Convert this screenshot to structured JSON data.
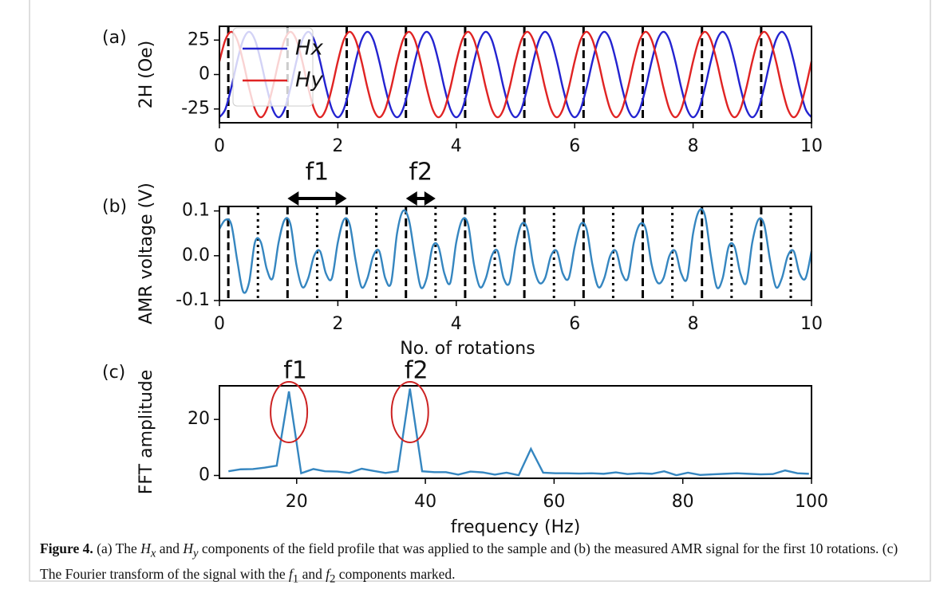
{
  "chart_data": [
    {
      "type": "line",
      "panel_label": "(a)",
      "ylabel": "2H (Oe)",
      "x": [
        0,
        0.1,
        0.2,
        0.3,
        0.4,
        0.5,
        0.6,
        0.7,
        0.8,
        0.9,
        1,
        1.1,
        1.2,
        1.3,
        1.4,
        1.5,
        1.6,
        1.7,
        1.8,
        1.9,
        2,
        2.1,
        2.2,
        2.3,
        2.4,
        2.5,
        2.6,
        2.7,
        2.8,
        2.9,
        3,
        3.1,
        3.2,
        3.3,
        3.4,
        3.5,
        3.6,
        3.7,
        3.8,
        3.9,
        4,
        4.1,
        4.2,
        4.3,
        4.4,
        4.5,
        4.6,
        4.7,
        4.8,
        4.9,
        5,
        5.1,
        5.2,
        5.3,
        5.4,
        5.5,
        5.6,
        5.7,
        5.8,
        5.9,
        6,
        6.1,
        6.2,
        6.3,
        6.4,
        6.5,
        6.6,
        6.7,
        6.8,
        6.9,
        7,
        7.1,
        7.2,
        7.3,
        7.4,
        7.5,
        7.6,
        7.7,
        7.8,
        7.9,
        8,
        8.1,
        8.2,
        8.3,
        8.4,
        8.5,
        8.6,
        8.7,
        8.8,
        8.9,
        9,
        9.1,
        9.2,
        9.3,
        9.4,
        9.5,
        9.6,
        9.7,
        9.8,
        9.9,
        10
      ],
      "series": [
        {
          "name": "Hx",
          "color": "#2323d0",
          "values": [
            -31,
            -25.1,
            -9.6,
            9.6,
            25.1,
            31,
            25.1,
            9.6,
            -9.6,
            -25.1,
            -31,
            -25.1,
            -9.6,
            9.6,
            25.1,
            31,
            25.1,
            9.6,
            -9.6,
            -25.1,
            -31,
            -25.1,
            -9.6,
            9.6,
            25.1,
            31,
            25.1,
            9.6,
            -9.6,
            -25.1,
            -31,
            -25.1,
            -9.6,
            9.6,
            25.1,
            31,
            25.1,
            9.6,
            -9.6,
            -25.1,
            -31,
            -25.1,
            -9.6,
            9.6,
            25.1,
            31,
            25.1,
            9.6,
            -9.6,
            -25.1,
            -31,
            -25.1,
            -9.6,
            9.6,
            25.1,
            31,
            25.1,
            9.6,
            -9.6,
            -25.1,
            -31,
            -25.1,
            -9.6,
            9.6,
            25.1,
            31,
            25.1,
            9.6,
            -9.6,
            -25.1,
            -31,
            -25.1,
            -9.6,
            9.6,
            25.1,
            31,
            25.1,
            9.6,
            -9.6,
            -25.1,
            -31,
            -25.1,
            -9.6,
            9.6,
            25.1,
            31,
            25.1,
            9.6,
            -9.6,
            -25.1,
            -31,
            -25.1,
            -9.6,
            9.6,
            25.1,
            31,
            25.1,
            9.6,
            -9.6,
            -25.1,
            -31
          ]
        },
        {
          "name": "Hy",
          "color": "#e02323",
          "values": [
            9.6,
            25.1,
            31,
            25.1,
            9.6,
            -9.6,
            -25.1,
            -31,
            -25.1,
            -9.6,
            9.6,
            25.1,
            31,
            25.1,
            9.6,
            -9.6,
            -25.1,
            -31,
            -25.1,
            -9.6,
            9.6,
            25.1,
            31,
            25.1,
            9.6,
            -9.6,
            -25.1,
            -31,
            -25.1,
            -9.6,
            9.6,
            25.1,
            31,
            25.1,
            9.6,
            -9.6,
            -25.1,
            -31,
            -25.1,
            -9.6,
            9.6,
            25.1,
            31,
            25.1,
            9.6,
            -9.6,
            -25.1,
            -31,
            -25.1,
            -9.6,
            9.6,
            25.1,
            31,
            25.1,
            9.6,
            -9.6,
            -25.1,
            -31,
            -25.1,
            -9.6,
            9.6,
            25.1,
            31,
            25.1,
            9.6,
            -9.6,
            -25.1,
            -31,
            -25.1,
            -9.6,
            9.6,
            25.1,
            31,
            25.1,
            9.6,
            -9.6,
            -25.1,
            -31,
            -25.1,
            -9.6,
            9.6,
            25.1,
            31,
            25.1,
            9.6,
            -9.6,
            -25.1,
            -31,
            -25.1,
            -9.6,
            9.6,
            25.1,
            31,
            25.1,
            9.6,
            -9.6,
            -25.1,
            -31,
            -25.1,
            -9.6,
            9.6
          ]
        }
      ],
      "xlim": [
        0,
        10
      ],
      "xticks": [
        0,
        2,
        4,
        6,
        8,
        10
      ],
      "ylim": [
        -35,
        35
      ],
      "yticks": [
        -25,
        0,
        25
      ],
      "dashed_lines": [
        0.15,
        1.15,
        2.15,
        3.15,
        4.15,
        5.15,
        6.15,
        7.15,
        8.15,
        9.15
      ],
      "legend": "upper left"
    },
    {
      "type": "line",
      "panel_label": "(b)",
      "ylabel": "AMR voltage (V)",
      "xlabel": "No. of rotations",
      "x": [
        0,
        0.1,
        0.2,
        0.3,
        0.4,
        0.5,
        0.6,
        0.7,
        0.8,
        0.9,
        1,
        1.1,
        1.2,
        1.3,
        1.4,
        1.5,
        1.6,
        1.7,
        1.8,
        1.9,
        2,
        2.1,
        2.2,
        2.3,
        2.4,
        2.5,
        2.6,
        2.7,
        2.8,
        2.9,
        3,
        3.1,
        3.2,
        3.3,
        3.4,
        3.5,
        3.6,
        3.7,
        3.8,
        3.9,
        4,
        4.1,
        4.2,
        4.3,
        4.4,
        4.5,
        4.6,
        4.7,
        4.8,
        4.9,
        5,
        5.1,
        5.2,
        5.3,
        5.4,
        5.5,
        5.6,
        5.7,
        5.8,
        5.9,
        6,
        6.1,
        6.2,
        6.3,
        6.4,
        6.5,
        6.6,
        6.7,
        6.8,
        6.9,
        7,
        7.1,
        7.2,
        7.3,
        7.4,
        7.5,
        7.6,
        7.7,
        7.8,
        7.9,
        8,
        8.1,
        8.2,
        8.3,
        8.4,
        8.5,
        8.6,
        8.7,
        8.8,
        8.9,
        9,
        9.1,
        9.2,
        9.3,
        9.4,
        9.5,
        9.6,
        9.7,
        9.8,
        9.9,
        10
      ],
      "series": [
        {
          "color": "#3586c0",
          "values": [
            0.06,
            0.08,
            0.07,
            -0.01,
            -0.08,
            -0.06,
            0.03,
            0.03,
            -0.03,
            -0.05,
            0.03,
            0.08,
            0.07,
            -0.02,
            -0.07,
            -0.05,
            0,
            0.01,
            -0.04,
            -0.05,
            0.03,
            0.08,
            0.07,
            -0.01,
            -0.07,
            -0.05,
            0,
            0.01,
            -0.05,
            -0.06,
            0.05,
            0.1,
            0.08,
            0,
            -0.07,
            -0.05,
            0.02,
            0.02,
            -0.04,
            -0.06,
            0.03,
            0.08,
            0.07,
            -0.02,
            -0.07,
            -0.05,
            0,
            0.01,
            -0.05,
            -0.06,
            0.02,
            0.07,
            0.06,
            -0.02,
            -0.06,
            -0.05,
            0,
            0.01,
            -0.04,
            -0.05,
            0.02,
            0.07,
            0.06,
            -0.02,
            -0.07,
            -0.05,
            0,
            0.01,
            -0.04,
            -0.05,
            0.03,
            0.07,
            0.06,
            -0.02,
            -0.06,
            -0.05,
            0,
            0.01,
            -0.04,
            -0.05,
            0.05,
            0.1,
            0.09,
            0,
            -0.07,
            -0.05,
            0.02,
            0.02,
            -0.04,
            -0.06,
            0.03,
            0.08,
            0.07,
            -0.01,
            -0.07,
            -0.05,
            0,
            0.01,
            -0.04,
            -0.05,
            0.01
          ]
        }
      ],
      "xlim": [
        0,
        10
      ],
      "xticks": [
        0,
        2,
        4,
        6,
        8,
        10
      ],
      "ylim": [
        -0.1,
        0.11
      ],
      "yticks": [
        -0.1,
        {
          "value": 0,
          "label": "0.0"
        },
        0.1
      ],
      "dashed_lines": [
        0.15,
        1.15,
        2.15,
        3.15,
        4.15,
        5.15,
        6.15,
        7.15,
        8.15,
        9.15
      ],
      "dotted_lines": [
        0.65,
        1.65,
        2.65,
        3.65,
        4.65,
        5.65,
        6.65,
        7.65,
        8.65,
        9.65
      ],
      "arrows": [
        {
          "text": "f1",
          "x": [
            1.15,
            2.15
          ]
        },
        {
          "text": "f2",
          "x": [
            3.15,
            3.65
          ]
        }
      ]
    },
    {
      "type": "line",
      "panel_label": "(c)",
      "ylabel": "FFT amplitude",
      "xlabel": "frequency (Hz)",
      "x": [
        9.4,
        11.3,
        13.2,
        15,
        16.9,
        18.8,
        20.7,
        22.6,
        24.4,
        26.3,
        28.2,
        30.1,
        32,
        33.8,
        35.7,
        37.6,
        39.5,
        41.4,
        43.2,
        45.1,
        47,
        48.9,
        50.8,
        52.6,
        54.5,
        56.4,
        58.3,
        60.2,
        62,
        63.9,
        65.8,
        67.7,
        69.6,
        71.4,
        73.3,
        75.2,
        77.1,
        79,
        80.8,
        82.7,
        84.6,
        86.5,
        88.4,
        90.2,
        92.1,
        94,
        95.9,
        97.8,
        99.6
      ],
      "series": [
        {
          "color": "#3586c0",
          "values": [
            1.5,
            2.2,
            2.3,
            2.8,
            3.5,
            30,
            0.8,
            2.3,
            1.5,
            1.4,
            0.9,
            2.4,
            1.6,
            0.9,
            1.5,
            31,
            1.5,
            1.2,
            1.2,
            0.3,
            1.4,
            1.1,
            0.3,
            1,
            0.1,
            9.5,
            1,
            0.8,
            0.8,
            0.7,
            0.8,
            0.6,
            1.1,
            0.5,
            0.8,
            0.6,
            1.5,
            0.1,
            1,
            0.2,
            0.4,
            0.6,
            0.8,
            0.6,
            0.4,
            0.5,
            1.8,
            0.8,
            0.6
          ]
        }
      ],
      "xlim": [
        8,
        100
      ],
      "xticks": [
        20,
        40,
        60,
        80,
        100
      ],
      "ylim": [
        -1,
        32
      ],
      "yticks": [
        0,
        20
      ],
      "circles": [
        {
          "text": "f1",
          "x": 18.8
        },
        {
          "text": "f2",
          "x": 37.6
        }
      ]
    }
  ],
  "caption": {
    "parts": [
      "Figure 4.",
      " (a) The ",
      "H",
      "x",
      " and ",
      "H",
      "y",
      " components of the field profile that was applied to the sample and (b) the measured AMR signal for the first 10 rotations. (c) The Fourier transform of the signal with the ",
      "f",
      "1",
      " and ",
      "f",
      "2",
      " components marked."
    ]
  }
}
